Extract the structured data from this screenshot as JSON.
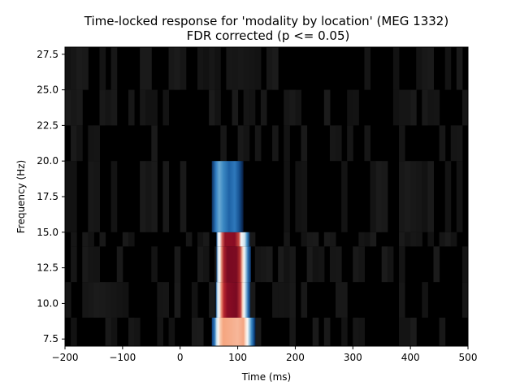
{
  "chart_data": {
    "type": "heatmap",
    "title": "Time-locked response for 'modality by location' (MEG 1332)",
    "subtitle": "FDR corrected (p <= 0.05)",
    "xlabel": "Time (ms)",
    "ylabel": "Frequency (Hz)",
    "xlim": [
      -200,
      500
    ],
    "ylim": [
      7,
      28
    ],
    "x_ticks": [
      "−200",
      "−100",
      "0",
      "100",
      "200",
      "300",
      "400",
      "500"
    ],
    "x_tick_values": [
      -200,
      -100,
      0,
      100,
      200,
      300,
      400,
      500
    ],
    "y_ticks": [
      "7.5",
      "10.0",
      "12.5",
      "15.0",
      "17.5",
      "20.0",
      "22.5",
      "25.0",
      "27.5"
    ],
    "y_tick_values": [
      7.5,
      10.0,
      12.5,
      15.0,
      17.5,
      20.0,
      22.5,
      25.0,
      27.5
    ],
    "frequency_bands": [
      {
        "freq": 8,
        "y0": 7,
        "y1": 9,
        "segments": [
          [
            55,
            "#0d3b7a"
          ],
          [
            60,
            "#2f7bc0"
          ],
          [
            63,
            "#bcd9ea"
          ],
          [
            66,
            "#f7f7f7"
          ],
          [
            70,
            "#f8c7ab"
          ],
          [
            75,
            "#f5a57f"
          ],
          [
            100,
            "#f7b699"
          ],
          [
            110,
            "#f4a582"
          ],
          [
            114,
            "#fbe0d0"
          ],
          [
            117,
            "#f7f7f7"
          ],
          [
            120,
            "#a8d0e6"
          ],
          [
            124,
            "#3b88c2"
          ],
          [
            128,
            "#0f4d8f"
          ],
          [
            131,
            "#071a3a"
          ]
        ]
      },
      {
        "freq": 10.5,
        "y0": 9,
        "y1": 11.5,
        "segments": [
          [
            62,
            "#0f4d8f"
          ],
          [
            65,
            "#c9e1ee"
          ],
          [
            68,
            "#f7f7f7"
          ],
          [
            72,
            "#e8836a"
          ],
          [
            76,
            "#b7252f"
          ],
          [
            82,
            "#8a0c24"
          ],
          [
            98,
            "#7a0a22"
          ],
          [
            105,
            "#c0383a"
          ],
          [
            108,
            "#f3c5b0"
          ],
          [
            111,
            "#f7f7f7"
          ],
          [
            114,
            "#9dc7e1"
          ],
          [
            118,
            "#2a6fb3"
          ],
          [
            122,
            "#082956"
          ]
        ]
      },
      {
        "freq": 13,
        "y0": 11.5,
        "y1": 14,
        "segments": [
          [
            63,
            "#134d8c"
          ],
          [
            66,
            "#d6e8f1"
          ],
          [
            69,
            "#f7f7f7"
          ],
          [
            72,
            "#e08a72"
          ],
          [
            76,
            "#a8202c"
          ],
          [
            82,
            "#7a0a22"
          ],
          [
            98,
            "#7c0b22"
          ],
          [
            104,
            "#b5302f"
          ],
          [
            108,
            "#f2c0aa"
          ],
          [
            111,
            "#f7f7f7"
          ],
          [
            114,
            "#a5cde3"
          ],
          [
            118,
            "#2c73b5"
          ],
          [
            123,
            "#0a2c5c"
          ]
        ]
      },
      {
        "freq": 15.5,
        "y0": 14,
        "y1": 15,
        "segments": [
          [
            63,
            "#0f4d8f"
          ],
          [
            66,
            "#e6f0f6"
          ],
          [
            69,
            "#f7f7f7"
          ],
          [
            73,
            "#d5625a"
          ],
          [
            78,
            "#8f1024"
          ],
          [
            95,
            "#8a0c24"
          ],
          [
            102,
            "#c84b42"
          ],
          [
            106,
            "#f7f7f7"
          ],
          [
            112,
            "#cfe4ef"
          ],
          [
            116,
            "#4391c6"
          ],
          [
            121,
            "#0a2c5c"
          ]
        ]
      },
      {
        "freq": 17.5,
        "y0": 15,
        "y1": 20,
        "segments": [
          [
            55,
            "#0a2c5c"
          ],
          [
            62,
            "#2f7bc0"
          ],
          [
            68,
            "#6aa9d3"
          ],
          [
            75,
            "#3b88c2"
          ],
          [
            85,
            "#1f63a6"
          ],
          [
            95,
            "#2e78bb"
          ],
          [
            103,
            "#144f8e"
          ],
          [
            110,
            "#071a3a"
          ]
        ]
      }
    ]
  }
}
